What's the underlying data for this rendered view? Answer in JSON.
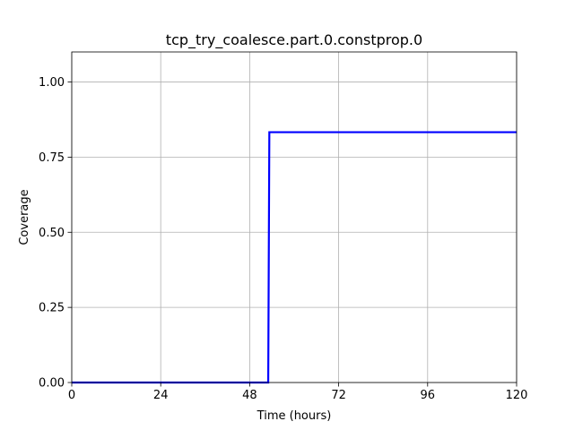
{
  "chart_data": {
    "type": "line",
    "title": "tcp_try_coalesce.part.0.constprop.0",
    "xlabel": "Time (hours)",
    "ylabel": "Coverage",
    "xlim": [
      0,
      120
    ],
    "ylim": [
      0,
      1.1
    ],
    "xticks": [
      0,
      24,
      48,
      72,
      96,
      120
    ],
    "xtick_labels": [
      "0",
      "24",
      "48",
      "72",
      "96",
      "120"
    ],
    "yticks": [
      0.0,
      0.25,
      0.5,
      0.75,
      1.0
    ],
    "ytick_labels": [
      "0.00",
      "0.25",
      "0.50",
      "0.75",
      "1.00"
    ],
    "grid": true,
    "series": [
      {
        "color": "#0000ff",
        "x": [
          0,
          53,
          53.3,
          120
        ],
        "y": [
          0,
          0,
          0.833,
          0.833
        ]
      }
    ]
  }
}
